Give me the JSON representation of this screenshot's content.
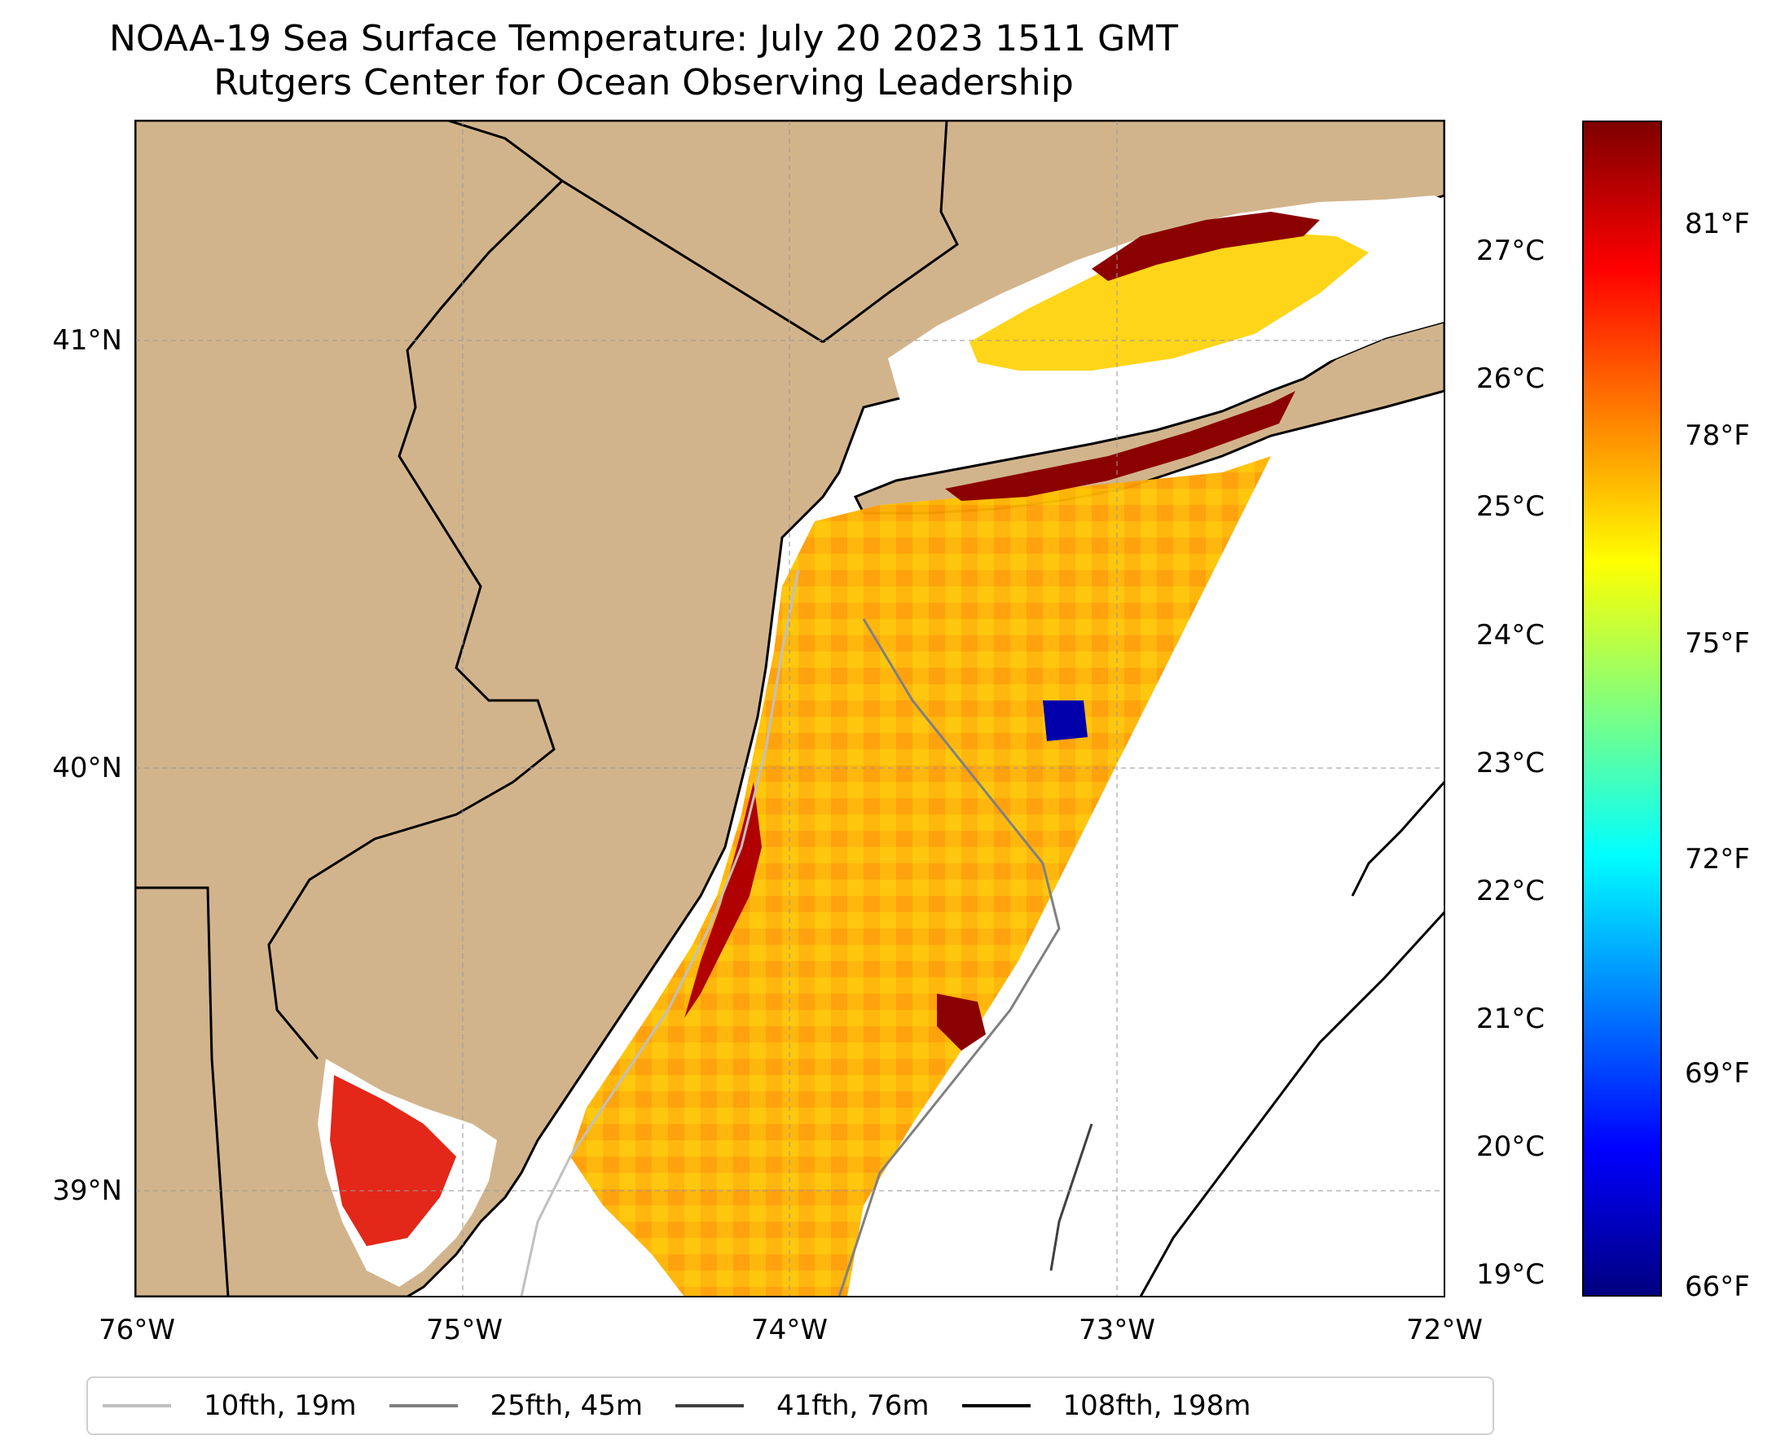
{
  "title": {
    "line1": "NOAA-19 Sea Surface Temperature: July 20 2023 1511 GMT",
    "line2": "Rutgers Center for Ocean Observing Leadership"
  },
  "map": {
    "land_color": "#d2b48c",
    "coastline_color": "#000000",
    "lon_range": [
      -76.0,
      -72.0
    ],
    "lat_range": [
      38.75,
      41.5
    ],
    "lon_ticks": [
      "76°W",
      "75°W",
      "74°W",
      "73°W",
      "72°W"
    ],
    "lat_ticks": [
      "41°N",
      "40°N",
      "39°N"
    ]
  },
  "colorbar": {
    "colormap": "jet",
    "celsius_ticks": [
      "27°C",
      "26°C",
      "25°C",
      "24°C",
      "23°C",
      "22°C",
      "21°C",
      "20°C",
      "19°C"
    ],
    "fahrenheit_ticks": [
      "81°F",
      "78°F",
      "75°F",
      "72°F",
      "69°F",
      "66°F"
    ],
    "colors": [
      "#00007f",
      "#0000ff",
      "#007fff",
      "#00ffff",
      "#7fff7f",
      "#ffff00",
      "#ff7f00",
      "#ff0000",
      "#7f0000"
    ]
  },
  "legend": [
    {
      "label": "10fth, 19m",
      "color": "#c0c0c0"
    },
    {
      "label": "25fth, 45m",
      "color": "#808080"
    },
    {
      "label": "41fth, 76m",
      "color": "#404040"
    },
    {
      "label": "108fth, 198m",
      "color": "#000000"
    }
  ]
}
